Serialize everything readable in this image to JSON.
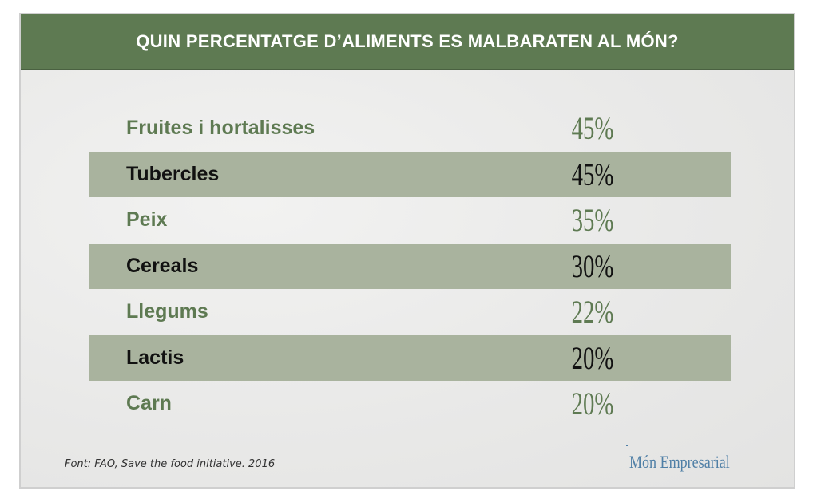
{
  "header": {
    "title": "QUIN PERCENTATGE D’ALIMENTS ES MALBARATEN AL MÓN?"
  },
  "chart_data": {
    "type": "table",
    "title": "QUIN PERCENTATGE D’ALIMENTS ES MALBARATEN AL MÓN?",
    "rows": [
      {
        "label": "Fruites i hortalisses",
        "value": 45,
        "display": "45%"
      },
      {
        "label": "Tubercles",
        "value": 45,
        "display": "45%"
      },
      {
        "label": "Peix",
        "value": 35,
        "display": "35%"
      },
      {
        "label": "Cereals",
        "value": 30,
        "display": "30%"
      },
      {
        "label": "Llegums",
        "value": 22,
        "display": "22%"
      },
      {
        "label": "Lactis",
        "value": 20,
        "display": "20%"
      },
      {
        "label": "Carn",
        "value": 20,
        "display": "20%"
      }
    ]
  },
  "footer": {
    "source": "Font: FAO, Save the food initiative. 2016",
    "brand": "Món Empresarial"
  },
  "colors": {
    "header_bg": "#5e7a52",
    "row_shade": "#a9b39e",
    "green_text": "#5e7a52",
    "dark_text": "#111111",
    "brand": "#4f7fa6"
  }
}
